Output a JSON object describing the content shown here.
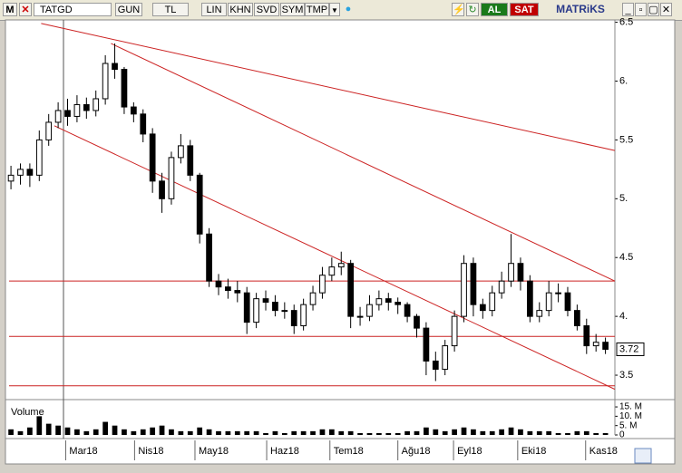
{
  "toolbar": {
    "logo": "M",
    "symbol": "TATGD",
    "period": "GUN",
    "currency": "TL",
    "buttons": [
      "LIN",
      "KHN",
      "SVD",
      "SYM",
      "TMP"
    ],
    "buy": "AL",
    "sell": "SAT",
    "brand": "MATRiKS"
  },
  "chart_data": {
    "type": "candlestick",
    "x": [
      0,
      1,
      2,
      3,
      4,
      5,
      6,
      7,
      8,
      9,
      10,
      11,
      12,
      13,
      14,
      15,
      16,
      17,
      18,
      19,
      20,
      21,
      22,
      23,
      24,
      25,
      26,
      27,
      28,
      29,
      30,
      31,
      32,
      33,
      34,
      35,
      36,
      37,
      38,
      39,
      40,
      41,
      42,
      43,
      44,
      45,
      46,
      47,
      48,
      49,
      50,
      51,
      52,
      53,
      54,
      55,
      56,
      57,
      58,
      59,
      60,
      61,
      62,
      63
    ],
    "open": [
      5.15,
      5.2,
      5.25,
      5.2,
      5.5,
      5.65,
      5.75,
      5.7,
      5.8,
      5.75,
      5.85,
      6.15,
      6.1,
      5.78,
      5.72,
      5.55,
      5.15,
      5.0,
      5.35,
      5.45,
      5.2,
      4.7,
      4.3,
      4.25,
      4.22,
      4.2,
      3.95,
      4.15,
      4.12,
      4.05,
      4.05,
      3.92,
      4.1,
      4.2,
      4.35,
      4.42,
      4.45,
      4.0,
      4.0,
      4.1,
      4.15,
      4.12,
      4.1,
      4.0,
      3.9,
      3.62,
      3.55,
      3.75,
      4.0,
      4.45,
      4.1,
      4.05,
      4.2,
      4.3,
      4.45,
      4.3,
      4.0,
      4.05,
      4.2,
      4.2,
      4.05,
      3.92,
      3.75,
      3.78
    ],
    "high": [
      5.28,
      5.3,
      5.3,
      5.58,
      5.72,
      5.82,
      5.85,
      5.88,
      5.86,
      5.92,
      6.22,
      6.32,
      6.12,
      5.82,
      5.76,
      5.6,
      5.22,
      5.4,
      5.55,
      5.5,
      5.22,
      4.75,
      4.36,
      4.32,
      4.3,
      4.25,
      4.2,
      4.22,
      4.18,
      4.12,
      4.1,
      4.15,
      4.26,
      4.42,
      4.5,
      4.55,
      4.48,
      4.08,
      4.18,
      4.22,
      4.2,
      4.16,
      4.12,
      4.02,
      3.95,
      3.7,
      3.8,
      4.05,
      4.52,
      4.5,
      4.15,
      4.26,
      4.38,
      4.7,
      4.5,
      4.35,
      4.12,
      4.3,
      4.28,
      4.25,
      4.1,
      3.98,
      3.85,
      3.82
    ],
    "low": [
      5.08,
      5.12,
      5.1,
      5.15,
      5.45,
      5.6,
      5.62,
      5.65,
      5.68,
      5.7,
      5.8,
      6.02,
      5.72,
      5.65,
      5.48,
      5.05,
      4.88,
      4.95,
      5.3,
      5.15,
      4.62,
      4.25,
      4.18,
      4.15,
      4.12,
      3.85,
      3.9,
      4.05,
      4.0,
      3.98,
      3.85,
      3.88,
      4.05,
      4.15,
      4.3,
      4.35,
      3.9,
      3.92,
      3.96,
      4.05,
      4.05,
      4.02,
      3.95,
      3.82,
      3.5,
      3.45,
      3.5,
      3.7,
      3.95,
      4.0,
      3.98,
      4.0,
      4.15,
      4.25,
      4.22,
      3.95,
      3.95,
      4.0,
      4.12,
      4.0,
      3.88,
      3.68,
      3.7,
      3.68
    ],
    "close": [
      5.2,
      5.25,
      5.2,
      5.5,
      5.65,
      5.75,
      5.7,
      5.8,
      5.75,
      5.85,
      6.15,
      6.1,
      5.78,
      5.72,
      5.55,
      5.15,
      5.0,
      5.35,
      5.45,
      5.2,
      4.7,
      4.3,
      4.25,
      4.22,
      4.2,
      3.95,
      4.15,
      4.12,
      4.05,
      4.05,
      3.92,
      4.1,
      4.2,
      4.35,
      4.42,
      4.45,
      4.0,
      4.0,
      4.1,
      4.15,
      4.12,
      4.1,
      4.0,
      3.9,
      3.62,
      3.55,
      3.75,
      4.0,
      4.45,
      4.1,
      4.05,
      4.2,
      4.3,
      4.45,
      4.3,
      4.0,
      4.05,
      4.2,
      4.2,
      4.05,
      3.92,
      3.75,
      3.78,
      3.72
    ],
    "volume": [
      3,
      2,
      4,
      10,
      6,
      5,
      4,
      3,
      2,
      3,
      7,
      5,
      3,
      2,
      3,
      4,
      5,
      3,
      2,
      2,
      4,
      3,
      2,
      2,
      2,
      2,
      2,
      1,
      2,
      1,
      2,
      2,
      2,
      3,
      3,
      2,
      2,
      1,
      1,
      1,
      1,
      1,
      2,
      2,
      4,
      3,
      2,
      3,
      4,
      3,
      2,
      2,
      3,
      4,
      3,
      2,
      2,
      2,
      1,
      1,
      2,
      2,
      1,
      1
    ],
    "up_color": "#ffffff",
    "down_color": "#000000",
    "volume_color": "#000000",
    "xlim": [
      -0.2,
      64
    ],
    "xticks": [
      {
        "value": 5.8,
        "label": "Mar18"
      },
      {
        "value": 13.1,
        "label": "Nis18"
      },
      {
        "value": 19.5,
        "label": "May18"
      },
      {
        "value": 27.1,
        "label": "Haz18"
      },
      {
        "value": 33.8,
        "label": "Tem18"
      },
      {
        "value": 41,
        "label": "Ağu18"
      },
      {
        "value": 46.9,
        "label": "Eyl18"
      },
      {
        "value": 53.7,
        "label": "Eki18"
      },
      {
        "value": 60.9,
        "label": "Kas18"
      }
    ],
    "ylim": [
      3.3,
      6.52
    ],
    "yticks": [
      3.5,
      {
        "value": 4,
        "label": "4."
      },
      4.5,
      {
        "value": 5,
        "label": "5."
      },
      5.5,
      {
        "value": 6,
        "label": "6."
      },
      6.5
    ],
    "volume_label": "Volume",
    "vlim": [
      0,
      16
    ],
    "vticks": [
      0,
      {
        "value": 5,
        "label": "5. M"
      },
      {
        "value": 10,
        "label": "10. M"
      },
      {
        "value": 15,
        "label": "15. M"
      }
    ],
    "line_color": "#cc2222",
    "trend_lines": [
      {
        "x": [
          3.2,
          64
        ],
        "y": [
          6.49,
          5.41
        ]
      },
      {
        "x": [
          10.6,
          64
        ],
        "y": [
          6.32,
          4.3
        ]
      },
      {
        "x": [
          4.6,
          64
        ],
        "y": [
          5.62,
          3.38
        ]
      },
      {
        "x": [
          -0.2,
          64
        ],
        "y": [
          4.3,
          4.3
        ]
      },
      {
        "x": [
          -0.2,
          64
        ],
        "y": [
          3.83,
          3.83
        ]
      },
      {
        "x": [
          -0.2,
          64
        ],
        "y": [
          3.41,
          3.41
        ]
      }
    ]
  }
}
